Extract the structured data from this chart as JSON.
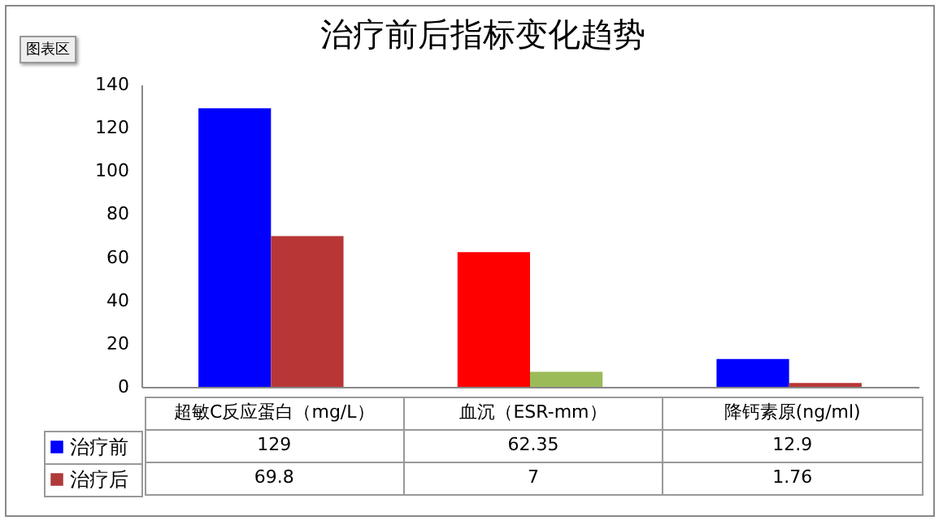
{
  "chart_data": {
    "type": "bar",
    "title": "治疗前后指标变化趋势",
    "categories": [
      "超敏C反应蛋白（mg/L）",
      "血沉（ESR-mm）",
      "降钙素原(ng/ml)"
    ],
    "series": [
      {
        "name": "治疗前",
        "color": "#0000ff",
        "colors": [
          "#0000ff",
          "#ff0000",
          "#0000ff"
        ],
        "values": [
          129,
          62.35,
          12.9
        ]
      },
      {
        "name": "治疗后",
        "color": "#b03a3a",
        "colors": [
          "#b83636",
          "#9bbb59",
          "#b83636"
        ],
        "values": [
          69.8,
          7,
          1.76
        ]
      }
    ],
    "ylim": [
      0,
      140
    ],
    "yticks": [
      0,
      20,
      40,
      60,
      80,
      100,
      120,
      140
    ],
    "grid": false,
    "legend": "bottom left",
    "data_labels": true,
    "annotations": [
      "图表区"
    ]
  }
}
